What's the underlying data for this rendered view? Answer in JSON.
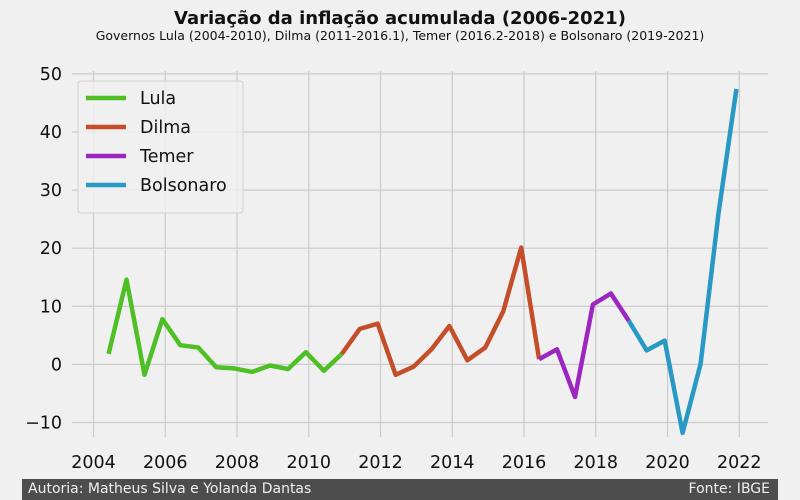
{
  "chart_data": {
    "type": "line",
    "title": "Variação da inflação acumulada (2006-2021)",
    "subtitle": "Governos Lula (2004-2010), Dilma (2011-2016.1), Temer (2016.2-2018) e Bolsonaro (2019-2021)",
    "xlabel": "",
    "ylabel": "",
    "xlim": [
      2003.4,
      2022.8
    ],
    "ylim": [
      -12.5,
      50.5
    ],
    "xticks": [
      2004,
      2006,
      2008,
      2010,
      2012,
      2014,
      2016,
      2018,
      2020,
      2022
    ],
    "yticks": [
      -10,
      0,
      10,
      20,
      30,
      40,
      50
    ],
    "grid": true,
    "legend_position": "top-left",
    "series": [
      {
        "name": "Lula",
        "color": "#4fbf26",
        "x": [
          2004.42,
          2004.92,
          2005.42,
          2005.92,
          2006.42,
          2006.92,
          2007.42,
          2007.92,
          2008.42,
          2008.92,
          2009.42,
          2009.92,
          2010.42,
          2010.92
        ],
        "y": [
          1.8,
          14.6,
          -1.8,
          7.8,
          3.3,
          2.9,
          -0.5,
          -0.7,
          -1.3,
          -0.2,
          -0.8,
          2.1,
          -1.1,
          1.8
        ]
      },
      {
        "name": "Dilma",
        "color": "#c44e2a",
        "x": [
          2010.92,
          2011.42,
          2011.92,
          2012.42,
          2012.92,
          2013.42,
          2013.92,
          2014.42,
          2014.92,
          2015.42,
          2015.92,
          2016.42
        ],
        "y": [
          1.8,
          6.1,
          7.0,
          -1.8,
          -0.4,
          2.6,
          6.6,
          0.7,
          2.9,
          9.1,
          20.1,
          0.9
        ]
      },
      {
        "name": "Temer",
        "color": "#9b27c0",
        "x": [
          2016.42,
          2016.92,
          2017.42,
          2017.92,
          2018.42,
          2018.92
        ],
        "y": [
          0.9,
          2.6,
          -5.6,
          10.3,
          12.2,
          7.5
        ]
      },
      {
        "name": "Bolsonaro",
        "color": "#2898c4",
        "x": [
          2018.92,
          2019.42,
          2019.92,
          2020.42,
          2020.92,
          2021.42,
          2021.92
        ],
        "y": [
          7.5,
          2.4,
          4.1,
          -11.8,
          0.1,
          26.0,
          47.4
        ]
      }
    ]
  },
  "footer": {
    "author": "Autoria: Matheus Silva e Yolanda Dantas",
    "source": "Fonte: IBGE"
  }
}
